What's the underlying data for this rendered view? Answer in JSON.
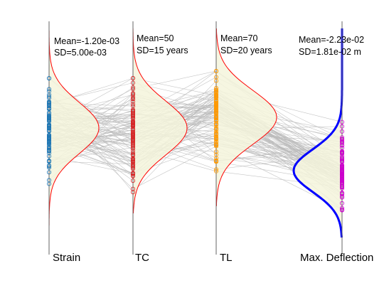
{
  "chart_data": {
    "type": "parallel-coordinates",
    "n_samples": 100,
    "axes": [
      {
        "id": "strain",
        "label": "Strain",
        "mean_label": "Mean=-1.20e-03",
        "sd_label": "SD=5.00e-03",
        "mean": -0.0012,
        "sd": 0.005,
        "marker_color": "#1f77b4",
        "curve_color": "#ff0000"
      },
      {
        "id": "tc",
        "label": "TC",
        "mean_label": "Mean=50",
        "sd_label": "SD=15 years",
        "mean": 50,
        "sd": 15,
        "unit": "years",
        "marker_color": "#d62728",
        "curve_color": "#ff0000"
      },
      {
        "id": "tl",
        "label": "TL",
        "mean_label": "Mean=70",
        "sd_label": "SD=20 years",
        "mean": 70,
        "sd": 20,
        "unit": "years",
        "marker_color": "#ff9900",
        "curve_color": "#ff0000"
      },
      {
        "id": "max-deflection",
        "label": "Max. Deflection",
        "mean_label": "Mean=-2.23e-02",
        "sd_label": "SD=1.81e-02 m",
        "mean": -0.0223,
        "sd": 0.0181,
        "unit": "m",
        "marker_color": "#cc00cc",
        "curve_color": "#0000ff"
      }
    ],
    "density_fill": "#f5f5dc",
    "line_color": "#bbbbbb",
    "grid": false,
    "legend": "none"
  }
}
